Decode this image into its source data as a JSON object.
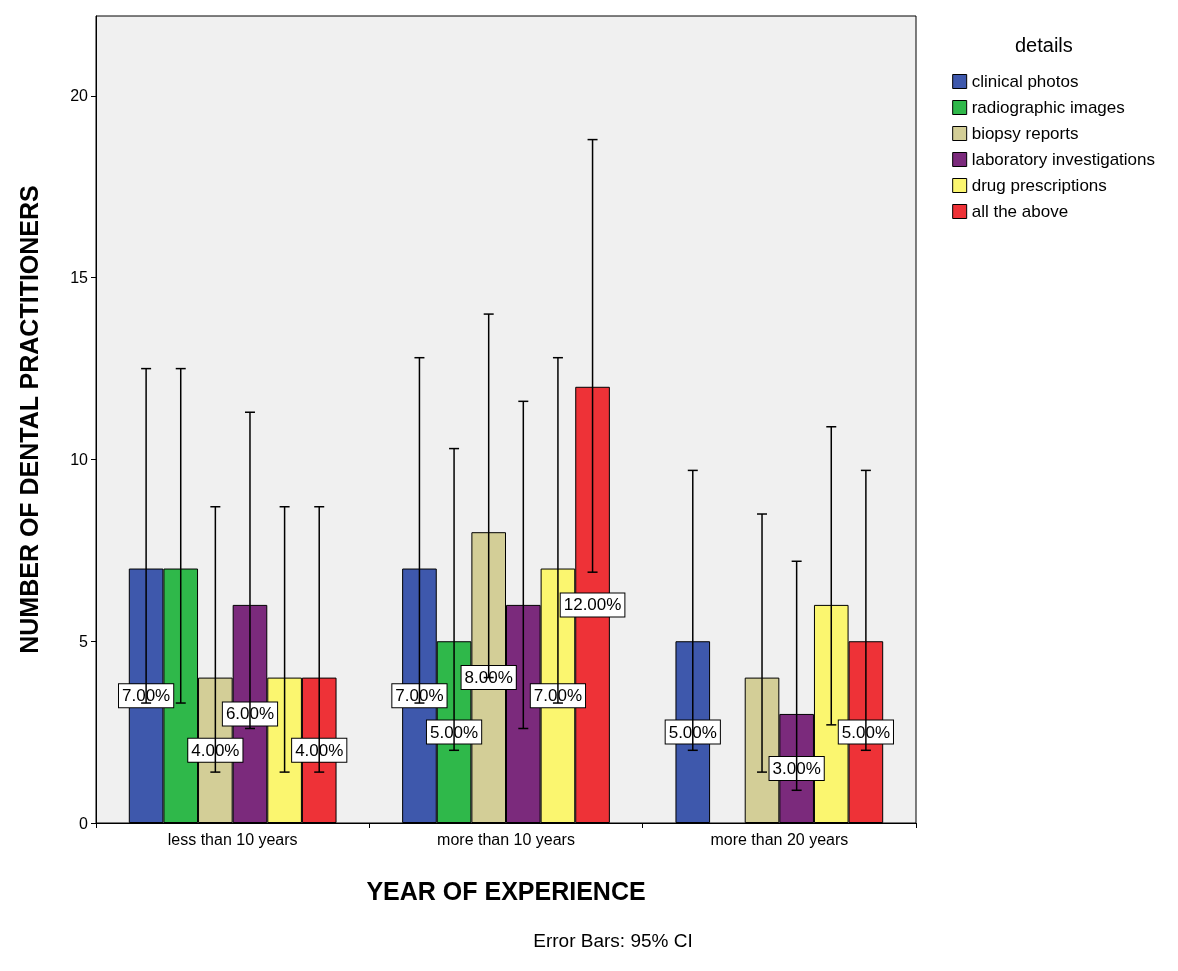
{
  "chart_data": {
    "type": "bar",
    "xlabel": "YEAR OF EXPERIENCE",
    "ylabel": "NUMBER OF DENTAL PRACTITIONERS",
    "legend_title": "details",
    "legend": "right",
    "annotations": [
      "Error Bars: 95% CI"
    ],
    "categories": [
      "less than 10 years",
      "more than 10 years",
      "more than 20 years"
    ],
    "ylim": [
      0,
      22.2
    ],
    "yticks": [
      0,
      5,
      10,
      15,
      20
    ],
    "grid": false,
    "series": [
      {
        "name": "clinical photos",
        "color": "#3e58ac",
        "values": [
          7,
          7,
          5
        ],
        "errors": [
          [
            3.3,
            12.5
          ],
          [
            3.3,
            12.8
          ],
          [
            2.0,
            9.7
          ]
        ],
        "value_labels": [
          "7.00%",
          "7.00%",
          "5.00%"
        ]
      },
      {
        "name": "radiographic images",
        "color": "#2fb84a",
        "values": [
          7,
          5,
          null
        ],
        "errors": [
          [
            3.3,
            12.5
          ],
          [
            2.0,
            10.3
          ],
          null
        ],
        "value_labels": [
          null,
          "5.00%",
          null
        ]
      },
      {
        "name": "biopsy reports",
        "color": "#d3ce97",
        "values": [
          4,
          8,
          4
        ],
        "errors": [
          [
            1.4,
            8.7
          ],
          [
            4.0,
            14.0
          ],
          [
            1.4,
            8.5
          ]
        ],
        "value_labels": [
          "4.00%",
          "8.00%",
          null
        ]
      },
      {
        "name": "laboratory investigations",
        "color": "#7b2a7c",
        "values": [
          6,
          6,
          3
        ],
        "errors": [
          [
            2.6,
            11.3
          ],
          [
            2.6,
            11.6
          ],
          [
            0.9,
            7.2
          ]
        ],
        "value_labels": [
          "6.00%",
          null,
          "3.00%"
        ]
      },
      {
        "name": "drug prescriptions",
        "color": "#fbf66f",
        "values": [
          4,
          7,
          6
        ],
        "errors": [
          [
            1.4,
            8.7
          ],
          [
            3.3,
            12.8
          ],
          [
            2.7,
            10.9
          ]
        ],
        "value_labels": [
          null,
          "7.00%",
          null
        ]
      },
      {
        "name": "all the above",
        "color": "#ee3237",
        "values": [
          4,
          12,
          5
        ],
        "errors": [
          [
            1.4,
            8.7
          ],
          [
            6.9,
            18.8
          ],
          [
            2.0,
            9.7
          ]
        ],
        "value_labels": [
          "4.00%",
          "12.00%",
          "5.00%"
        ]
      }
    ]
  }
}
